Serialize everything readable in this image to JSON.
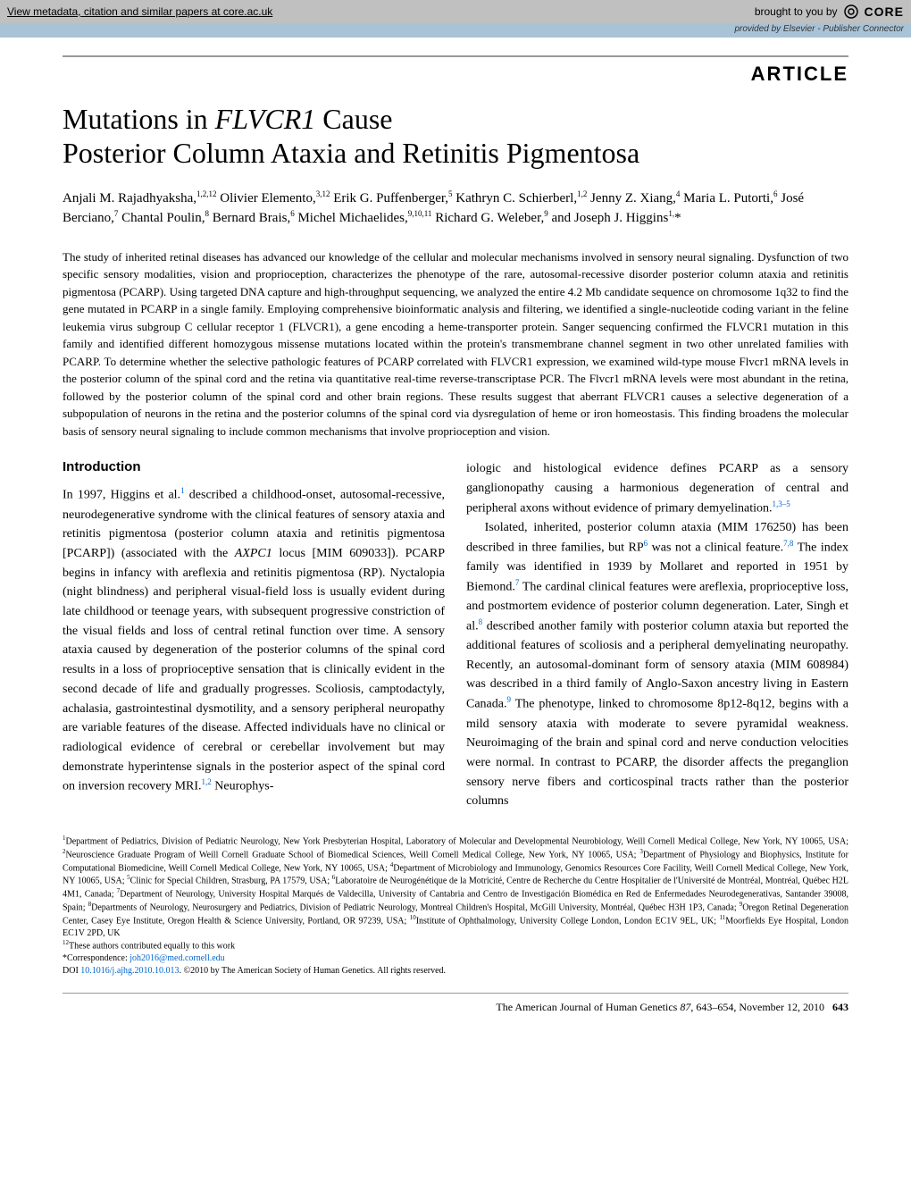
{
  "banner": {
    "metadata_text": "View metadata, citation and similar papers at core.ac.uk",
    "brought_by": "brought to you by",
    "core_label": "CORE",
    "provided_by": "provided by Elsevier - Publisher Connector"
  },
  "article_label": "ARTICLE",
  "title_line1": "Mutations in FLVCR1 Cause",
  "title_line2": "Posterior Column Ataxia and Retinitis Pigmentosa",
  "authors_html": "Anjali M. Rajadhyaksha,<sup>1,2,12</sup> Olivier Elemento,<sup>3,12</sup> Erik G. Puffenberger,<sup>5</sup> Kathryn C. Schierberl,<sup>1,2</sup> Jenny Z. Xiang,<sup>4</sup> Maria L. Putorti,<sup>6</sup> José Berciano,<sup>7</sup> Chantal Poulin,<sup>8</sup> Bernard Brais,<sup>6</sup> Michel Michaelides,<sup>9,10,11</sup> Richard G. Weleber,<sup>9</sup> and Joseph J. Higgins<sup>1,</sup>*",
  "abstract": "The study of inherited retinal diseases has advanced our knowledge of the cellular and molecular mechanisms involved in sensory neural signaling. Dysfunction of two specific sensory modalities, vision and proprioception, characterizes the phenotype of the rare, autosomal-recessive disorder posterior column ataxia and retinitis pigmentosa (PCARP). Using targeted DNA capture and high-throughput sequencing, we analyzed the entire 4.2 Mb candidate sequence on chromosome 1q32 to find the gene mutated in PCARP in a single family. Employing comprehensive bioinformatic analysis and filtering, we identified a single-nucleotide coding variant in the feline leukemia virus subgroup C cellular receptor 1 (FLVCR1), a gene encoding a heme-transporter protein. Sanger sequencing confirmed the FLVCR1 mutation in this family and identified different homozygous missense mutations located within the protein's transmembrane channel segment in two other unrelated families with PCARP. To determine whether the selective pathologic features of PCARP correlated with FLVCR1 expression, we examined wild-type mouse Flvcr1 mRNA levels in the posterior column of the spinal cord and the retina via quantitative real-time reverse-transcriptase PCR. The Flvcr1 mRNA levels were most abundant in the retina, followed by the posterior column of the spinal cord and other brain regions. These results suggest that aberrant FLVCR1 causes a selective degeneration of a subpopulation of neurons in the retina and the posterior columns of the spinal cord via dysregulation of heme or iron homeostasis. This finding broadens the molecular basis of sensory neural signaling to include common mechanisms that involve proprioception and vision.",
  "intro_heading": "Introduction",
  "col1_html": "In 1997, Higgins et al.<span class='sup'>1</span> described a childhood-onset, autosomal-recessive, neurodegenerative syndrome with the clinical features of sensory ataxia and retinitis pigmentosa (posterior column ataxia and retinitis pigmentosa [PCARP]) (associated with the <span class='ital'>AXPC1</span> locus [MIM 609033]). PCARP begins in infancy with areflexia and retinitis pigmentosa (RP). Nyctalopia (night blindness) and peripheral visual-field loss is usually evident during late childhood or teenage years, with subsequent progressive constriction of the visual fields and loss of central retinal function over time. A sensory ataxia caused by degeneration of the posterior columns of the spinal cord results in a loss of proprioceptive sensation that is clinically evident in the second decade of life and gradually progresses. Scoliosis, camptodactyly, achalasia, gastrointestinal dysmotility, and a sensory peripheral neuropathy are variable features of the disease. Affected individuals have no clinical or radiological evidence of cerebral or cerebellar involvement but may demonstrate hyperintense signals in the posterior aspect of the spinal cord on inversion recovery MRI.<span class='sup'>1,2</span> Neurophys-",
  "col2_html": "iologic and histological evidence defines PCARP as a sensory ganglionopathy causing a harmonious degeneration of central and peripheral axons without evidence of primary demyelination.<span class='sup'>1,3–5</span><br>&nbsp;&nbsp;&nbsp;Isolated, inherited, posterior column ataxia (MIM 176250) has been described in three families, but RP<span class='sup'>6</span> was not a clinical feature.<span class='sup'>7,8</span> The index family was identified in 1939 by Mollaret and reported in 1951 by Biemond.<span class='sup'>7</span> The cardinal clinical features were areflexia, proprioceptive loss, and postmortem evidence of posterior column degeneration. Later, Singh et al.<span class='sup'>8</span> described another family with posterior column ataxia but reported the additional features of scoliosis and a peripheral demyelinating neuropathy. Recently, an autosomal-dominant form of sensory ataxia (MIM 608984) was described in a third family of Anglo-Saxon ancestry living in Eastern Canada.<span class='sup'>9</span> The phenotype, linked to chromosome 8p12-8q12, begins with a mild sensory ataxia with moderate to severe pyramidal weakness. Neuroimaging of the brain and spinal cord and nerve conduction velocities were normal. In contrast to PCARP, the disorder affects the preganglion sensory nerve fibers and corticospinal tracts rather than the posterior columns",
  "affiliations_html": "<sup>1</sup>Department of Pediatrics, Division of Pediatric Neurology, New York Presbyterian Hospital, Laboratory of Molecular and Developmental Neurobiology, Weill Cornell Medical College, New York, NY 10065, USA; <sup>2</sup>Neuroscience Graduate Program of Weill Cornell Graduate School of Biomedical Sciences, Weill Cornell Medical College, New York, NY 10065, USA; <sup>3</sup>Department of Physiology and Biophysics, Institute for Computational Biomedicine, Weill Cornell Medical College, New York, NY 10065, USA; <sup>4</sup>Department of Microbiology and Immunology, Genomics Resources Core Facility, Weill Cornell Medical College, New York, NY 10065, USA; <sup>5</sup>Clinic for Special Children, Strasburg, PA 17579, USA; <sup>6</sup>Laboratoire de Neurogénétique de la Motricité, Centre de Recherche du Centre Hospitalier de l'Université de Montréal, Montréal, Québec H2L 4M1, Canada; <sup>7</sup>Department of Neurology, University Hospital Marqués de Valdecilla, University of Cantabria and Centro de Investigación Biomédica en Red de Enfermedades Neurodegenerativas, Santander 39008, Spain; <sup>8</sup>Departments of Neurology, Neurosurgery and Pediatrics, Division of Pediatric Neurology, Montreal Children's Hospital, McGill University, Montréal, Québec H3H 1P3, Canada; <sup>9</sup>Oregon Retinal Degeneration Center, Casey Eye Institute, Oregon Health & Science University, Portland, OR 97239, USA; <sup>10</sup>Institute of Ophthalmology, University College London, London EC1V 9EL, UK; <sup>11</sup>Moorfields Eye Hospital, London EC1V 2PD, UK<br><sup>12</sup>These authors contributed equally to this work<br>*Correspondence: <span class='corr-email'>joh2016@med.cornell.edu</span><br>DOI <span class='corr-email'>10.1016/j.ajhg.2010.10.013</span>. ©2010 by The American Society of Human Genetics. All rights reserved.",
  "footer": {
    "journal": "The American Journal of Human Genetics",
    "volume": "87",
    "pages": ", 643–654, November 12, 2010",
    "pagenum": "643"
  },
  "colors": {
    "banner_bg": "#c0c0c0",
    "provided_bg": "#a9c3d6",
    "rule": "#999999",
    "link": "#0066cc",
    "text": "#000000",
    "bg": "#ffffff"
  },
  "typography": {
    "title_fontsize_pt": 24,
    "authors_fontsize_pt": 11,
    "abstract_fontsize_pt": 9.5,
    "body_fontsize_pt": 10.5,
    "affil_fontsize_pt": 7.5,
    "article_label_fontsize_pt": 16
  }
}
